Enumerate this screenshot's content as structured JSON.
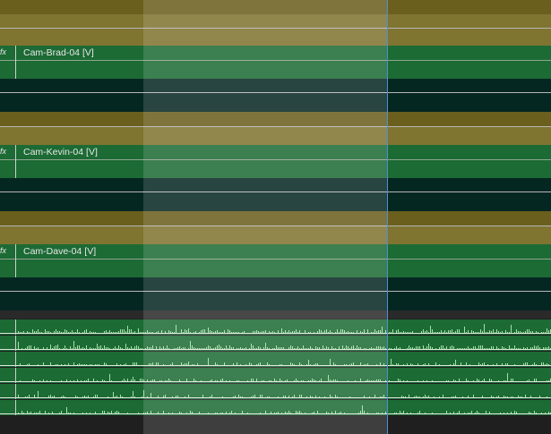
{
  "timeline": {
    "video_clips": [
      {
        "label": "Cam-Brad-04 [V]",
        "fx": "fx"
      },
      {
        "label": "Cam-Kevin-04 [V]",
        "fx": "fx"
      },
      {
        "label": "Cam-Dave-04 [V]",
        "fx": "fx"
      }
    ],
    "audio_track_count": 6,
    "colors": {
      "video_clip": "#1c6a34",
      "adjustment_clip": "#6b5f1d",
      "empty_track": "#052722",
      "playhead": "#4a8fd8",
      "waveform": "#a8e0a8"
    }
  }
}
